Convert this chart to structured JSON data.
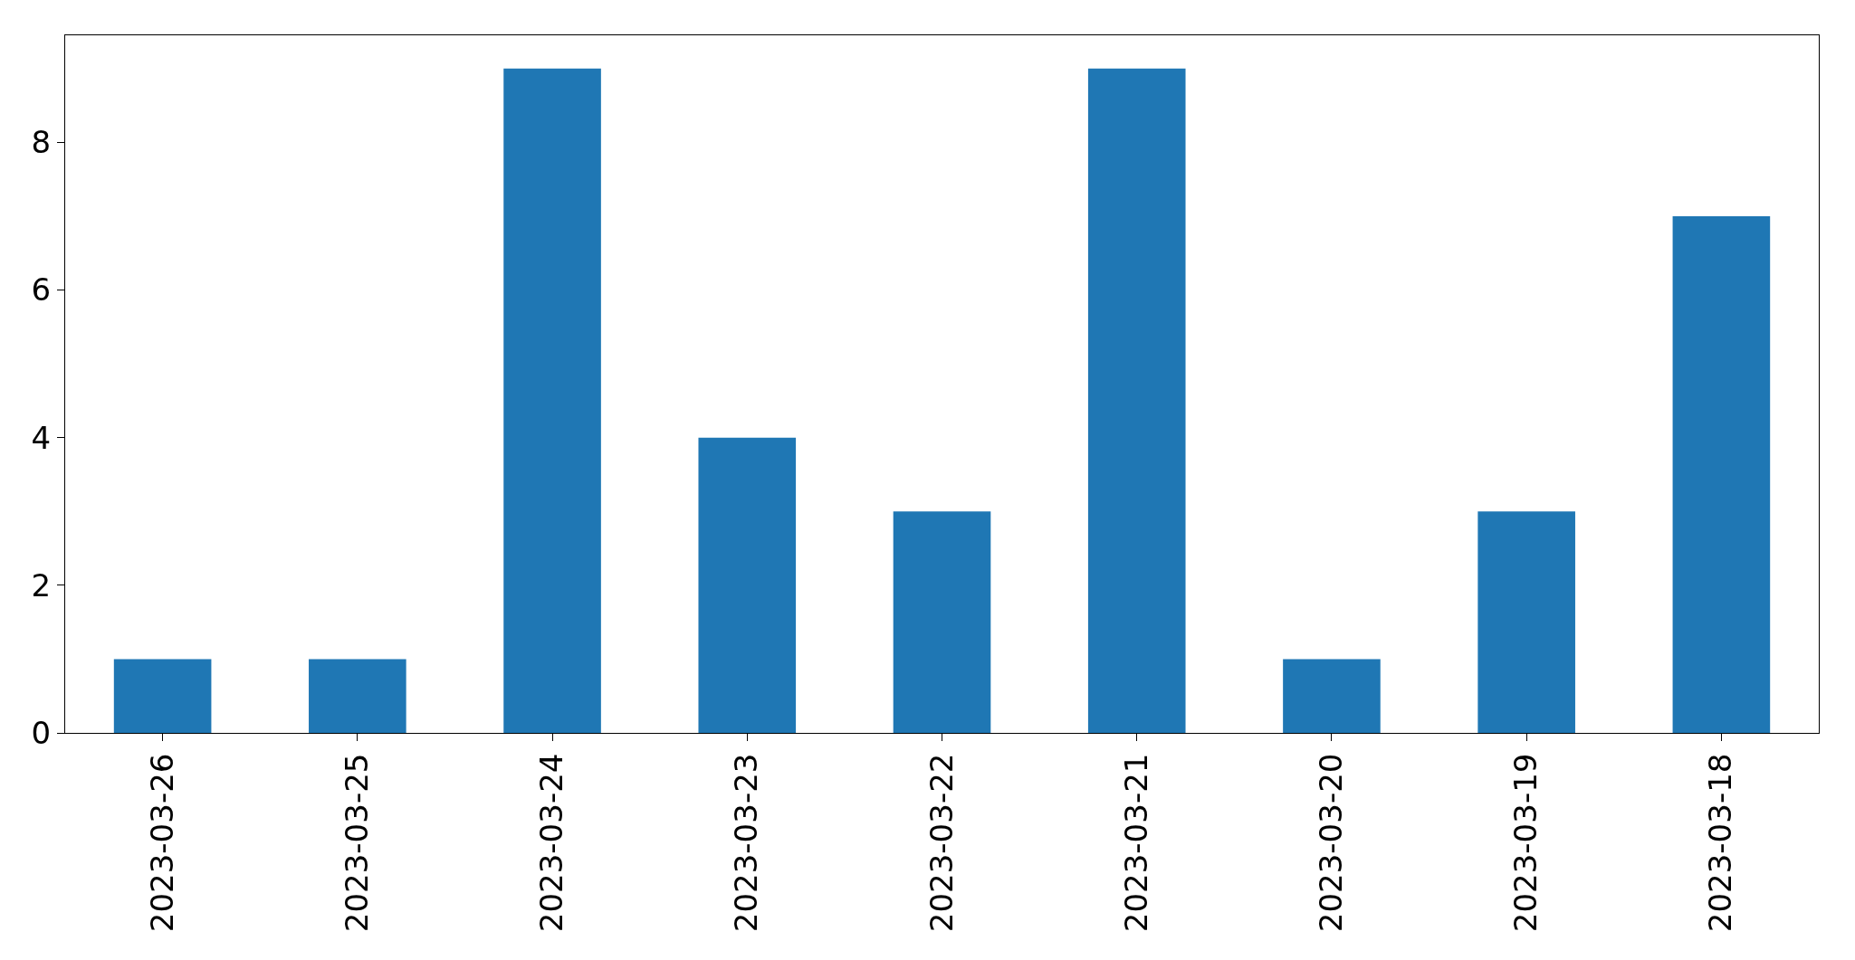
{
  "chart_data": {
    "type": "bar",
    "categories": [
      "2023-03-26",
      "2023-03-25",
      "2023-03-24",
      "2023-03-23",
      "2023-03-22",
      "2023-03-21",
      "2023-03-20",
      "2023-03-19",
      "2023-03-18"
    ],
    "values": [
      1,
      1,
      9,
      4,
      3,
      9,
      1,
      3,
      7
    ],
    "color": "#1f77b4",
    "ylim": [
      0,
      9.45
    ],
    "yticks": [
      0,
      2,
      4,
      6,
      8
    ]
  }
}
